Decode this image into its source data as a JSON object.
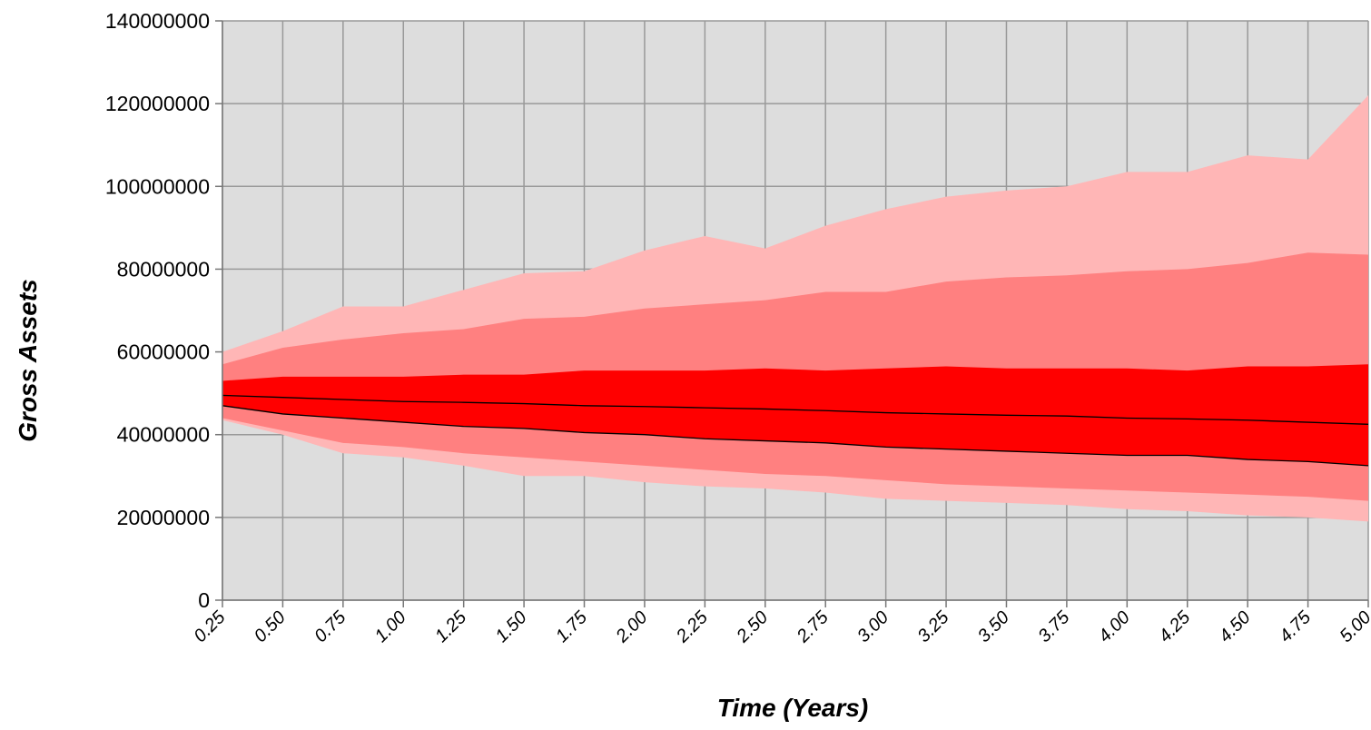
{
  "chart_data": {
    "type": "area",
    "xlabel": "Time (Years)",
    "ylabel": "Gross Assets",
    "x": [
      "0.25",
      "0.50",
      "0.75",
      "1.00",
      "1.25",
      "1.50",
      "1.75",
      "2.00",
      "2.25",
      "2.50",
      "2.75",
      "3.00",
      "3.25",
      "3.50",
      "3.75",
      "4.00",
      "4.25",
      "4.50",
      "4.75",
      "5.00"
    ],
    "yticks": [
      "0",
      "20000000",
      "40000000",
      "60000000",
      "80000000",
      "100000000",
      "120000000",
      "140000000"
    ],
    "ylim": [
      0,
      140000000
    ],
    "grid": true,
    "legend": "none",
    "bands": [
      {
        "color": "#FFB6B6",
        "upper": [
          60000000,
          65000000,
          71000000,
          71000000,
          75000000,
          79000000,
          79500000,
          84500000,
          88000000,
          85000000,
          90500000,
          94500000,
          97500000,
          99000000,
          100000000,
          103500000,
          103500000,
          107500000,
          106500000,
          122000000
        ],
        "lower": [
          43500000,
          40000000,
          35500000,
          34500000,
          32500000,
          30000000,
          30000000,
          28500000,
          27500000,
          27000000,
          26000000,
          24500000,
          24000000,
          23500000,
          23000000,
          22000000,
          21500000,
          20500000,
          20000000,
          19000000
        ]
      },
      {
        "color": "#FF8080",
        "upper": [
          57000000,
          61000000,
          63000000,
          64500000,
          65500000,
          68000000,
          68500000,
          70500000,
          71500000,
          72500000,
          74500000,
          74500000,
          77000000,
          78000000,
          78500000,
          79500000,
          80000000,
          81500000,
          84000000,
          83500000
        ],
        "lower": [
          44000000,
          41000000,
          38000000,
          37000000,
          35500000,
          34500000,
          33500000,
          32500000,
          31500000,
          30500000,
          30000000,
          29000000,
          28000000,
          27500000,
          27000000,
          26500000,
          26000000,
          25500000,
          25000000,
          24000000
        ]
      },
      {
        "color": "#FF0000",
        "upper": [
          53000000,
          54000000,
          54000000,
          54000000,
          54500000,
          54500000,
          55500000,
          55500000,
          55500000,
          56000000,
          55500000,
          56000000,
          56500000,
          56000000,
          56000000,
          56000000,
          55500000,
          56500000,
          56500000,
          57000000
        ],
        "lower": [
          47000000,
          45000000,
          44000000,
          43000000,
          42000000,
          41500000,
          40500000,
          40000000,
          39000000,
          38500000,
          38000000,
          37000000,
          36500000,
          36000000,
          35500000,
          35000000,
          35000000,
          34000000,
          33500000,
          32500000
        ]
      }
    ],
    "lines": [
      {
        "color": "#000000",
        "values": [
          49500000,
          49000000,
          48500000,
          48000000,
          47800000,
          47500000,
          47000000,
          46800000,
          46500000,
          46200000,
          45800000,
          45300000,
          45000000,
          44700000,
          44500000,
          44000000,
          43800000,
          43500000,
          43000000,
          42500000
        ]
      },
      {
        "color": "#000000",
        "values": [
          47000000,
          45000000,
          44000000,
          43000000,
          42000000,
          41500000,
          40500000,
          40000000,
          39000000,
          38500000,
          38000000,
          37000000,
          36500000,
          36000000,
          35500000,
          35000000,
          35000000,
          34000000,
          33500000,
          32500000
        ]
      }
    ],
    "plot_background": "#DDDDDD",
    "grid_color": "#999999"
  }
}
